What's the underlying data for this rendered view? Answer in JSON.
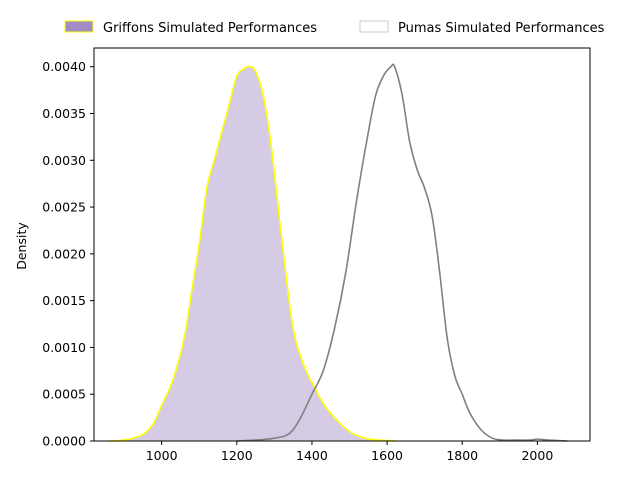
{
  "chart_data": {
    "type": "area",
    "title": "",
    "xlabel": "",
    "ylabel": "Density",
    "xlim": [
      820,
      2140
    ],
    "ylim": [
      0,
      0.0042
    ],
    "x_ticks": [
      1000,
      1200,
      1400,
      1600,
      1800,
      2000
    ],
    "x_tick_labels": [
      "1000",
      "1200",
      "1400",
      "1600",
      "1800",
      "2000"
    ],
    "y_ticks": [
      0,
      0.0005,
      0.001,
      0.0015,
      0.002,
      0.0025,
      0.003,
      0.0035,
      0.004
    ],
    "y_tick_labels": [
      "0.0000",
      "0.0005",
      "0.0010",
      "0.0015",
      "0.0020",
      "0.0025",
      "0.0030",
      "0.0035",
      "0.0040"
    ],
    "grid": false,
    "legend_placement": "top, above plot",
    "series": [
      {
        "name": "Griffons Simulated Performances",
        "style": "filled",
        "fill_color": "#a28cc4",
        "line_color": "#ffff00",
        "x": [
          860,
          900,
          940,
          960,
          980,
          1000,
          1030,
          1060,
          1080,
          1100,
          1120,
          1140,
          1160,
          1180,
          1200,
          1220,
          1235,
          1250,
          1270,
          1290,
          1310,
          1330,
          1350,
          1370,
          1390,
          1410,
          1430,
          1460,
          1500,
          1540,
          1580,
          1620
        ],
        "y": [
          0,
          1e-05,
          5e-05,
          0.0001,
          0.0002,
          0.00038,
          0.00065,
          0.0011,
          0.0016,
          0.0021,
          0.0027,
          0.003,
          0.0033,
          0.0036,
          0.0039,
          0.00398,
          0.004,
          0.00395,
          0.0037,
          0.0032,
          0.0025,
          0.0018,
          0.0012,
          0.0009,
          0.0007,
          0.00055,
          0.0004,
          0.00025,
          0.0001,
          3e-05,
          1e-05,
          0
        ]
      },
      {
        "name": "Pumas Simulated Performances",
        "style": "line",
        "fill_color": "none",
        "line_color": "#808080",
        "x": [
          1200,
          1250,
          1300,
          1340,
          1370,
          1400,
          1430,
          1460,
          1490,
          1520,
          1550,
          1570,
          1590,
          1610,
          1620,
          1640,
          1660,
          1680,
          1700,
          1720,
          1740,
          1760,
          1780,
          1800,
          1820,
          1850,
          1880,
          1910,
          1940,
          1980,
          2000,
          2030,
          2080
        ],
        "y": [
          0,
          1e-05,
          3e-05,
          8e-05,
          0.00025,
          0.0005,
          0.00075,
          0.0012,
          0.0018,
          0.0026,
          0.0033,
          0.0037,
          0.0039,
          0.004,
          0.004,
          0.0037,
          0.0032,
          0.0029,
          0.0027,
          0.0024,
          0.0018,
          0.0011,
          0.0007,
          0.0005,
          0.0003,
          0.00012,
          3e-05,
          1e-05,
          1e-05,
          1e-05,
          2e-05,
          1e-05,
          0
        ]
      }
    ]
  }
}
